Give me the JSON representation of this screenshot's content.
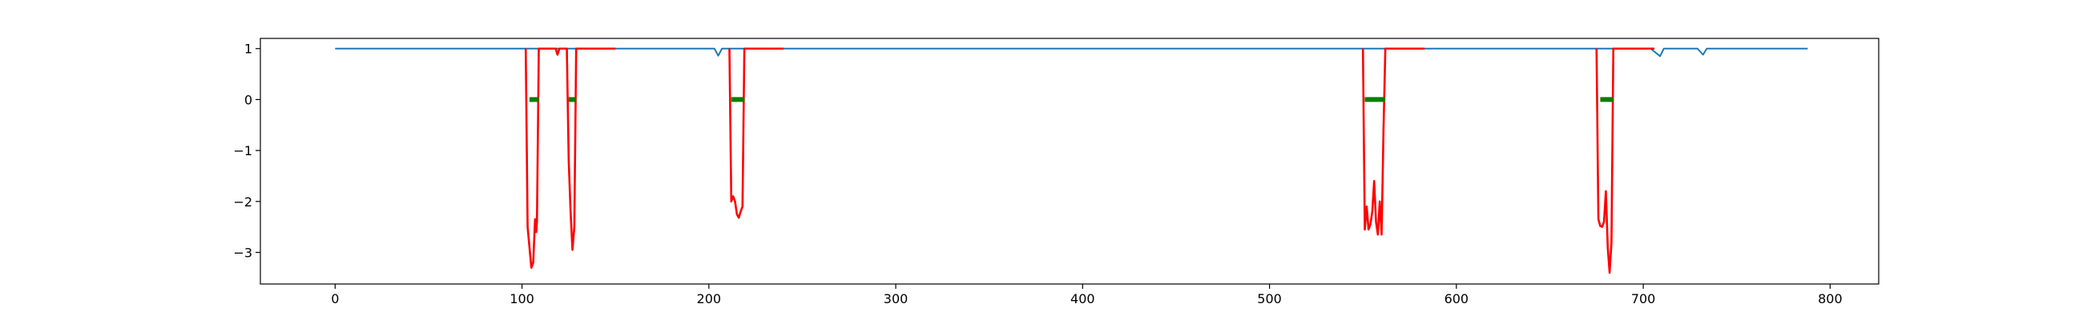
{
  "chart_data": {
    "type": "line",
    "title": "",
    "xlabel": "",
    "ylabel": "",
    "xlim": [
      -40,
      826
    ],
    "ylim": [
      -3.62,
      1.2
    ],
    "xticks": [
      0,
      100,
      200,
      300,
      400,
      500,
      600,
      700,
      800
    ],
    "yticks": [
      1,
      0,
      -1,
      -2,
      -3
    ],
    "xtick_labels": [
      "0",
      "100",
      "200",
      "300",
      "400",
      "500",
      "600",
      "700",
      "800"
    ],
    "ytick_labels": [
      "1",
      "0",
      "−1",
      "−2",
      "−3"
    ],
    "grid": false,
    "legend": "none",
    "series": [
      {
        "color": "#1f77b4",
        "points": [
          [
            0,
            1
          ],
          [
            203,
            1
          ],
          [
            205,
            0.86
          ],
          [
            207,
            1
          ],
          [
            520,
            1
          ],
          [
            560,
            1
          ],
          [
            704,
            1
          ],
          [
            709,
            0.85
          ],
          [
            711,
            1
          ],
          [
            729,
            1
          ],
          [
            732,
            0.88
          ],
          [
            734,
            1
          ],
          [
            788,
            1
          ]
        ]
      },
      {
        "color": "#ff0000",
        "points": [
          [
            102,
            1
          ],
          [
            103,
            -2.5
          ],
          [
            104,
            -2.9
          ],
          [
            105,
            -3.3
          ],
          [
            106,
            -3.2
          ],
          [
            107,
            -2.35
          ],
          [
            107.6,
            -2.6
          ],
          [
            108,
            -2.4
          ],
          [
            109,
            1
          ],
          [
            118,
            1
          ],
          [
            119,
            0.88
          ],
          [
            120,
            1
          ],
          [
            124,
            1
          ],
          [
            125,
            -1.2
          ],
          [
            126,
            -2.2
          ],
          [
            127,
            -2.95
          ],
          [
            128,
            -2.5
          ],
          [
            129,
            1
          ],
          [
            150,
            1
          ]
        ]
      },
      {
        "color": "#ff0000",
        "points": [
          [
            211,
            1
          ],
          [
            212,
            -2
          ],
          [
            213,
            -1.9
          ],
          [
            214,
            -2
          ],
          [
            215,
            -2.25
          ],
          [
            216,
            -2.32
          ],
          [
            217,
            -2.2
          ],
          [
            218,
            -2.1
          ],
          [
            219,
            1
          ],
          [
            240,
            1
          ]
        ]
      },
      {
        "color": "#ff0000",
        "points": [
          [
            550,
            1
          ],
          [
            551,
            -2.55
          ],
          [
            552,
            -2.1
          ],
          [
            553,
            -2.55
          ],
          [
            554,
            -2.45
          ],
          [
            555,
            -2.2
          ],
          [
            556,
            -1.6
          ],
          [
            557,
            -2.4
          ],
          [
            558,
            -2.65
          ],
          [
            559,
            -2.0
          ],
          [
            560,
            -2.65
          ],
          [
            561,
            -0.6
          ],
          [
            562,
            1
          ],
          [
            583,
            1
          ]
        ]
      },
      {
        "color": "#ff0000",
        "points": [
          [
            675,
            1
          ],
          [
            676,
            -2.35
          ],
          [
            677,
            -2.48
          ],
          [
            678,
            -2.5
          ],
          [
            679,
            -2.4
          ],
          [
            680,
            -1.8
          ],
          [
            681,
            -2.9
          ],
          [
            682,
            -3.4
          ],
          [
            683,
            -2.8
          ],
          [
            684,
            1
          ],
          [
            706,
            1
          ]
        ]
      },
      {
        "color": "#008000",
        "points": [
          [
            104,
            0
          ],
          [
            109,
            0
          ]
        ]
      },
      {
        "color": "#008000",
        "points": [
          [
            125,
            0
          ],
          [
            129,
            0
          ]
        ]
      },
      {
        "color": "#008000",
        "points": [
          [
            212,
            0
          ],
          [
            219,
            0
          ]
        ]
      },
      {
        "color": "#008000",
        "points": [
          [
            551,
            0
          ],
          [
            562,
            0
          ]
        ]
      },
      {
        "color": "#008000",
        "points": [
          [
            677,
            0
          ],
          [
            684,
            0
          ]
        ]
      }
    ]
  }
}
